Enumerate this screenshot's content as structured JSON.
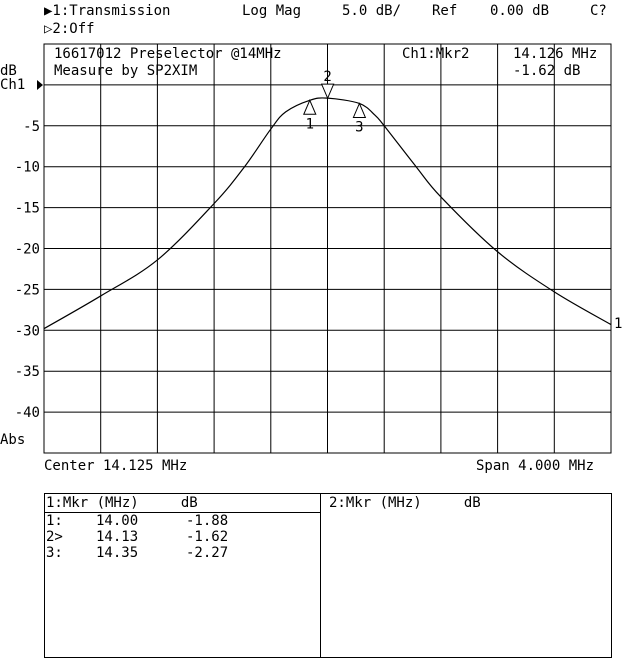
{
  "header": {
    "channel1": "▶1:Transmission",
    "channel2": "▷2:Off",
    "format": "Log Mag",
    "scale": "5.0 dB/",
    "ref_label": "Ref",
    "ref_value": "0.00 dB",
    "status": "C?"
  },
  "annotation": {
    "title_line1": "16617012 Preselector @14MHz",
    "title_line2": "Measure by SP2XIM",
    "active_marker": "Ch1:Mkr2",
    "marker_freq": "14.126 MHz",
    "marker_value": "-1.62 dB"
  },
  "axis": {
    "unit": "dB",
    "channel": "Ch1",
    "abs": "Abs",
    "center": "Center 14.125 MHz",
    "span": "Span 4.000 MHz",
    "trace_end_label": "1"
  },
  "chart_data": {
    "type": "line",
    "xlabel": "",
    "ylabel": "dB",
    "xlim": [
      12.125,
      16.125
    ],
    "ylim": [
      -45,
      5
    ],
    "grid": true,
    "yticks": [
      0,
      -5,
      -10,
      -15,
      -20,
      -25,
      -30,
      -35,
      -40
    ],
    "ytick_labels": [
      "",
      "-5",
      "-10",
      "-15",
      "-20",
      "-25",
      "-30",
      "-35",
      "-40"
    ],
    "series": [
      {
        "x": [
          12.125,
          12.525,
          12.925,
          13.325,
          13.54,
          13.725,
          13.83,
          14.0,
          14.125,
          14.35,
          14.46,
          14.525,
          14.75,
          14.925,
          15.325,
          15.725,
          16.125
        ],
        "y": [
          -29.8,
          -25.8,
          -21.4,
          -14.5,
          -10.0,
          -5.4,
          -3.3,
          -1.88,
          -1.62,
          -2.27,
          -3.7,
          -5.0,
          -10.0,
          -13.7,
          -20.4,
          -25.3,
          -29.3
        ]
      }
    ],
    "markers": [
      {
        "label": "1",
        "x": 14.0,
        "y": -1.88
      },
      {
        "label": "2",
        "x": 14.126,
        "y": -1.62,
        "active": true
      },
      {
        "label": "3",
        "x": 14.35,
        "y": -2.27
      }
    ]
  },
  "marker_table": {
    "ch1_header": "1:Mkr (MHz)     dB",
    "ch2_header": "2:Mkr (MHz)     dB",
    "rows": [
      {
        "id": "1:",
        "freq": "14.00",
        "value": "-1.88"
      },
      {
        "id": "2>",
        "freq": "14.13",
        "value": "-1.62"
      },
      {
        "id": "3:",
        "freq": "14.35",
        "value": "-2.27"
      }
    ]
  }
}
